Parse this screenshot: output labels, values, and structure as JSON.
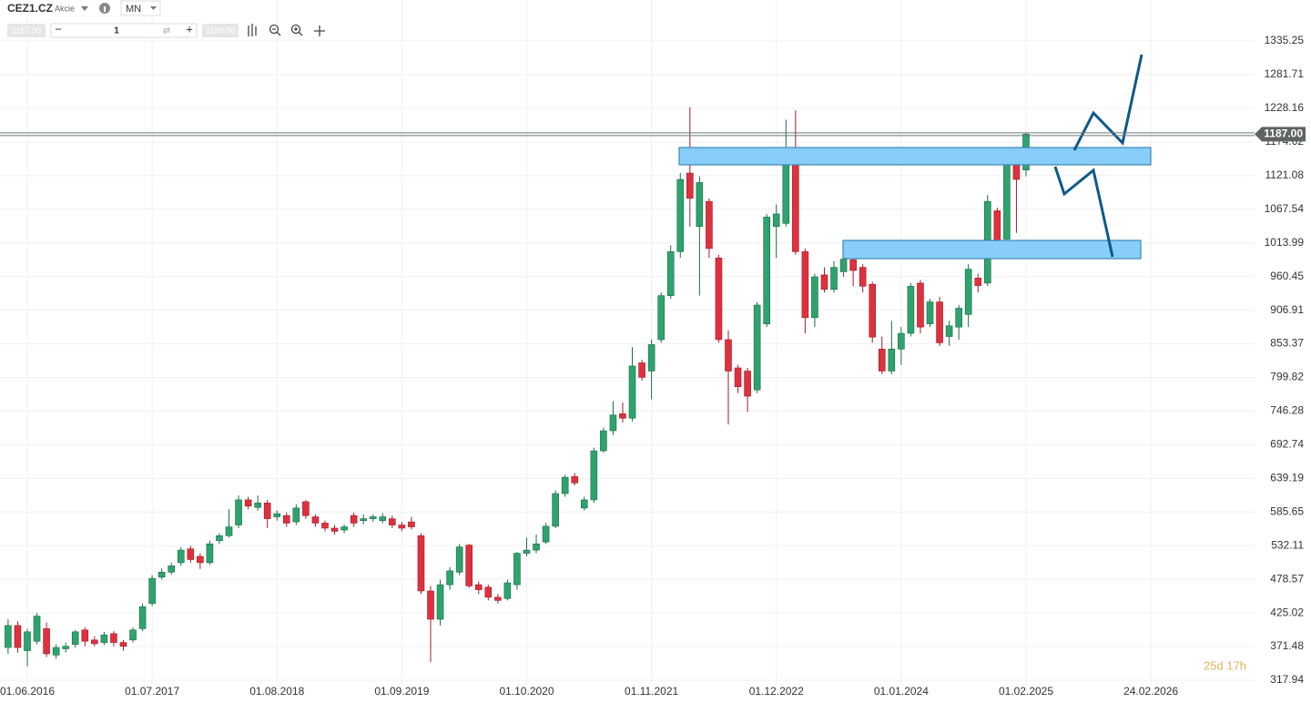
{
  "toolbar": {
    "symbol": "CEZ1.CZ",
    "asset_type": "Akcie",
    "interval": "MN",
    "bid": "1187.00",
    "quantity": "1",
    "ask": "1190.00"
  },
  "chart_data": {
    "type": "candlestick",
    "categories": [
      null,
      null,
      "01.06.2016",
      null,
      null,
      null,
      null,
      null,
      null,
      null,
      null,
      null,
      null,
      null,
      null,
      "01.07.2017",
      null,
      null,
      null,
      null,
      null,
      null,
      null,
      null,
      null,
      null,
      null,
      null,
      "01.08.2018",
      null,
      null,
      null,
      null,
      null,
      null,
      null,
      null,
      null,
      null,
      null,
      null,
      "01.09.2019",
      null,
      null,
      null,
      null,
      null,
      null,
      null,
      null,
      null,
      null,
      null,
      null,
      "01.10.2020",
      null,
      null,
      null,
      null,
      null,
      null,
      null,
      null,
      null,
      null,
      null,
      null,
      "01.11.2021",
      null,
      null,
      null,
      null,
      null,
      null,
      null,
      null,
      null,
      null,
      null,
      null,
      "01.12.2022",
      null,
      null,
      null,
      null,
      null,
      null,
      null,
      null,
      null,
      null,
      null,
      null,
      "01.01.2024",
      null,
      null,
      null,
      null,
      null,
      null,
      null,
      null,
      null,
      null,
      null,
      null,
      "01.02.2025",
      null,
      null,
      null,
      null,
      null,
      null,
      null,
      null,
      null,
      null,
      null,
      null,
      "24.02.2026"
    ],
    "open": [
      370,
      405,
      365,
      380,
      400,
      358,
      368,
      375,
      398,
      382,
      378,
      392,
      378,
      382,
      400,
      440,
      482,
      490,
      505,
      527,
      515,
      505,
      540,
      548,
      565,
      605,
      593,
      600,
      578,
      580,
      570,
      602,
      578,
      568,
      560,
      557,
      580,
      572,
      575,
      572,
      575,
      565,
      570,
      548,
      460,
      415,
      470,
      490,
      533,
      470,
      466,
      450,
      448,
      470,
      520,
      525,
      538,
      563,
      615,
      642,
      592,
      605,
      683,
      715,
      742,
      735,
      823,
      810,
      860,
      930,
      1000,
      1125,
      1040,
      1080,
      990,
      860,
      815,
      810,
      780,
      885,
      1040,
      1045,
      1145,
      1000,
      895,
      963,
      940,
      968,
      987,
      975,
      948,
      845,
      810,
      845,
      870,
      950,
      885,
      920,
      865,
      880,
      900,
      958,
      950,
      1065,
      1020,
      1145,
      1130,
      null,
      null,
      null,
      null,
      null,
      null,
      null,
      null,
      null,
      null,
      null,
      null,
      null
    ],
    "high": [
      415,
      412,
      400,
      425,
      410,
      375,
      378,
      398,
      402,
      388,
      395,
      396,
      382,
      402,
      440,
      485,
      496,
      505,
      530,
      532,
      520,
      540,
      552,
      590,
      612,
      610,
      612,
      605,
      588,
      585,
      598,
      605,
      582,
      572,
      565,
      566,
      585,
      582,
      582,
      584,
      580,
      570,
      578,
      552,
      468,
      478,
      498,
      535,
      535,
      475,
      470,
      455,
      478,
      522,
      545,
      550,
      568,
      620,
      645,
      648,
      610,
      688,
      720,
      762,
      760,
      848,
      828,
      860,
      935,
      1010,
      1125,
      1230,
      1120,
      1085,
      995,
      875,
      820,
      815,
      920,
      1060,
      1075,
      1210,
      1225,
      1005,
      965,
      975,
      985,
      1000,
      995,
      980,
      952,
      865,
      890,
      880,
      950,
      955,
      925,
      928,
      890,
      915,
      980,
      965,
      1090,
      1070,
      1155,
      1165,
      1190,
      null,
      null,
      null,
      null,
      null,
      null,
      null,
      null,
      null,
      null,
      null,
      null,
      null
    ],
    "low": [
      360,
      362,
      340,
      375,
      355,
      352,
      362,
      370,
      372,
      372,
      374,
      372,
      365,
      378,
      396,
      436,
      478,
      486,
      500,
      505,
      495,
      502,
      535,
      545,
      560,
      590,
      588,
      560,
      572,
      562,
      565,
      575,
      562,
      555,
      550,
      552,
      562,
      566,
      570,
      568,
      560,
      555,
      558,
      455,
      347,
      405,
      462,
      485,
      465,
      455,
      445,
      440,
      445,
      462,
      515,
      520,
      535,
      560,
      610,
      628,
      588,
      600,
      680,
      708,
      728,
      730,
      795,
      765,
      855,
      925,
      990,
      1040,
      930,
      990,
      855,
      725,
      775,
      745,
      775,
      880,
      990,
      1040,
      995,
      870,
      880,
      935,
      935,
      960,
      945,
      935,
      855,
      805,
      805,
      820,
      865,
      870,
      880,
      850,
      850,
      860,
      880,
      935,
      945,
      990,
      1015,
      1030,
      1120,
      null,
      null,
      null,
      null,
      null,
      null,
      null,
      null,
      null,
      null,
      null,
      null,
      null
    ],
    "close": [
      405,
      370,
      395,
      420,
      360,
      370,
      372,
      395,
      380,
      376,
      390,
      378,
      372,
      398,
      435,
      480,
      490,
      500,
      525,
      510,
      505,
      535,
      548,
      562,
      605,
      595,
      600,
      575,
      583,
      568,
      592,
      580,
      568,
      560,
      555,
      562,
      568,
      575,
      578,
      578,
      565,
      560,
      562,
      460,
      415,
      470,
      492,
      530,
      468,
      462,
      450,
      445,
      473,
      520,
      525,
      535,
      563,
      615,
      641,
      632,
      605,
      683,
      715,
      740,
      735,
      818,
      800,
      852,
      930,
      1000,
      1115,
      1085,
      1110,
      1005,
      860,
      810,
      785,
      770,
      915,
      1055,
      1060,
      1145,
      1000,
      895,
      960,
      940,
      975,
      988,
      970,
      945,
      864,
      810,
      845,
      870,
      945,
      880,
      920,
      855,
      882,
      910,
      972,
      946,
      1080,
      1000,
      1150,
      1115,
      1187,
      null,
      null,
      null,
      null,
      null,
      null,
      null,
      null,
      null,
      null,
      null,
      null,
      null
    ],
    "up_color": "#2ea36d",
    "down_color": "#e0303e",
    "ylim": [
      310.7,
      1386.0
    ],
    "yticks": [
      317.94,
      371.48,
      425.02,
      478.57,
      532.11,
      585.65,
      639.19,
      692.74,
      746.28,
      799.82,
      853.37,
      906.91,
      960.45,
      1013.99,
      1067.54,
      1121.08,
      1174.62,
      1228.16,
      1281.71,
      1335.25
    ],
    "grid": true,
    "last_price": {
      "value": 1187,
      "label": "1187.00"
    },
    "countdown": "25d 17h"
  }
}
